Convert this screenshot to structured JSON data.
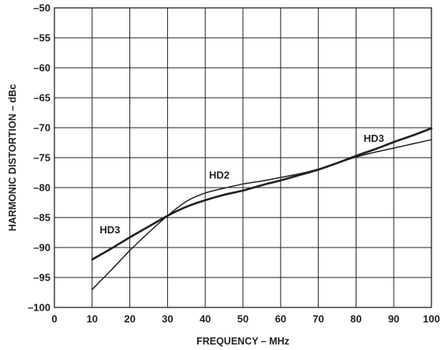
{
  "chart_data": {
    "type": "line",
    "xlabel": "FREQUENCY – MHz",
    "ylabel": "HARMONIC DISTORTION – dBc",
    "xlim": [
      0,
      100
    ],
    "ylim": [
      -100,
      -50
    ],
    "xticks": [
      "0",
      "10",
      "20",
      "30",
      "40",
      "50",
      "60",
      "70",
      "80",
      "90",
      "100"
    ],
    "yticks": [
      "–50",
      "–55",
      "–60",
      "–65",
      "–70",
      "–75",
      "–80",
      "–85",
      "–90",
      "–95",
      "–100"
    ],
    "grid": true,
    "series": [
      {
        "name": "HD2",
        "x": [
          10,
          15,
          20,
          25,
          30,
          35,
          40,
          45,
          50,
          55,
          60,
          65,
          70,
          75,
          80,
          85,
          90,
          95,
          100
        ],
        "y": [
          -97,
          -93.8,
          -90.5,
          -87.5,
          -84.7,
          -82.3,
          -80.9,
          -80.1,
          -79.4,
          -78.9,
          -78.3,
          -77.7,
          -76.9,
          -75.9,
          -74.9,
          -74.1,
          -73.4,
          -72.7,
          -72.0
        ]
      },
      {
        "name": "HD3",
        "x": [
          10,
          15,
          20,
          25,
          30,
          35,
          40,
          45,
          50,
          55,
          60,
          65,
          70,
          75,
          80,
          85,
          90,
          95,
          100
        ],
        "y": [
          -92,
          -90.2,
          -88.3,
          -86.5,
          -84.7,
          -83.2,
          -82.1,
          -81.2,
          -80.5,
          -79.6,
          -78.8,
          -77.9,
          -77.0,
          -75.9,
          -74.7,
          -73.6,
          -72.4,
          -71.3,
          -70.1
        ]
      }
    ],
    "annotations": [
      {
        "text": "HD3",
        "x": 12,
        "y": -87.6
      },
      {
        "text": "HD2",
        "x": 41,
        "y": -78.5
      },
      {
        "text": "HD3",
        "x": 82,
        "y": -72.4
      }
    ]
  }
}
